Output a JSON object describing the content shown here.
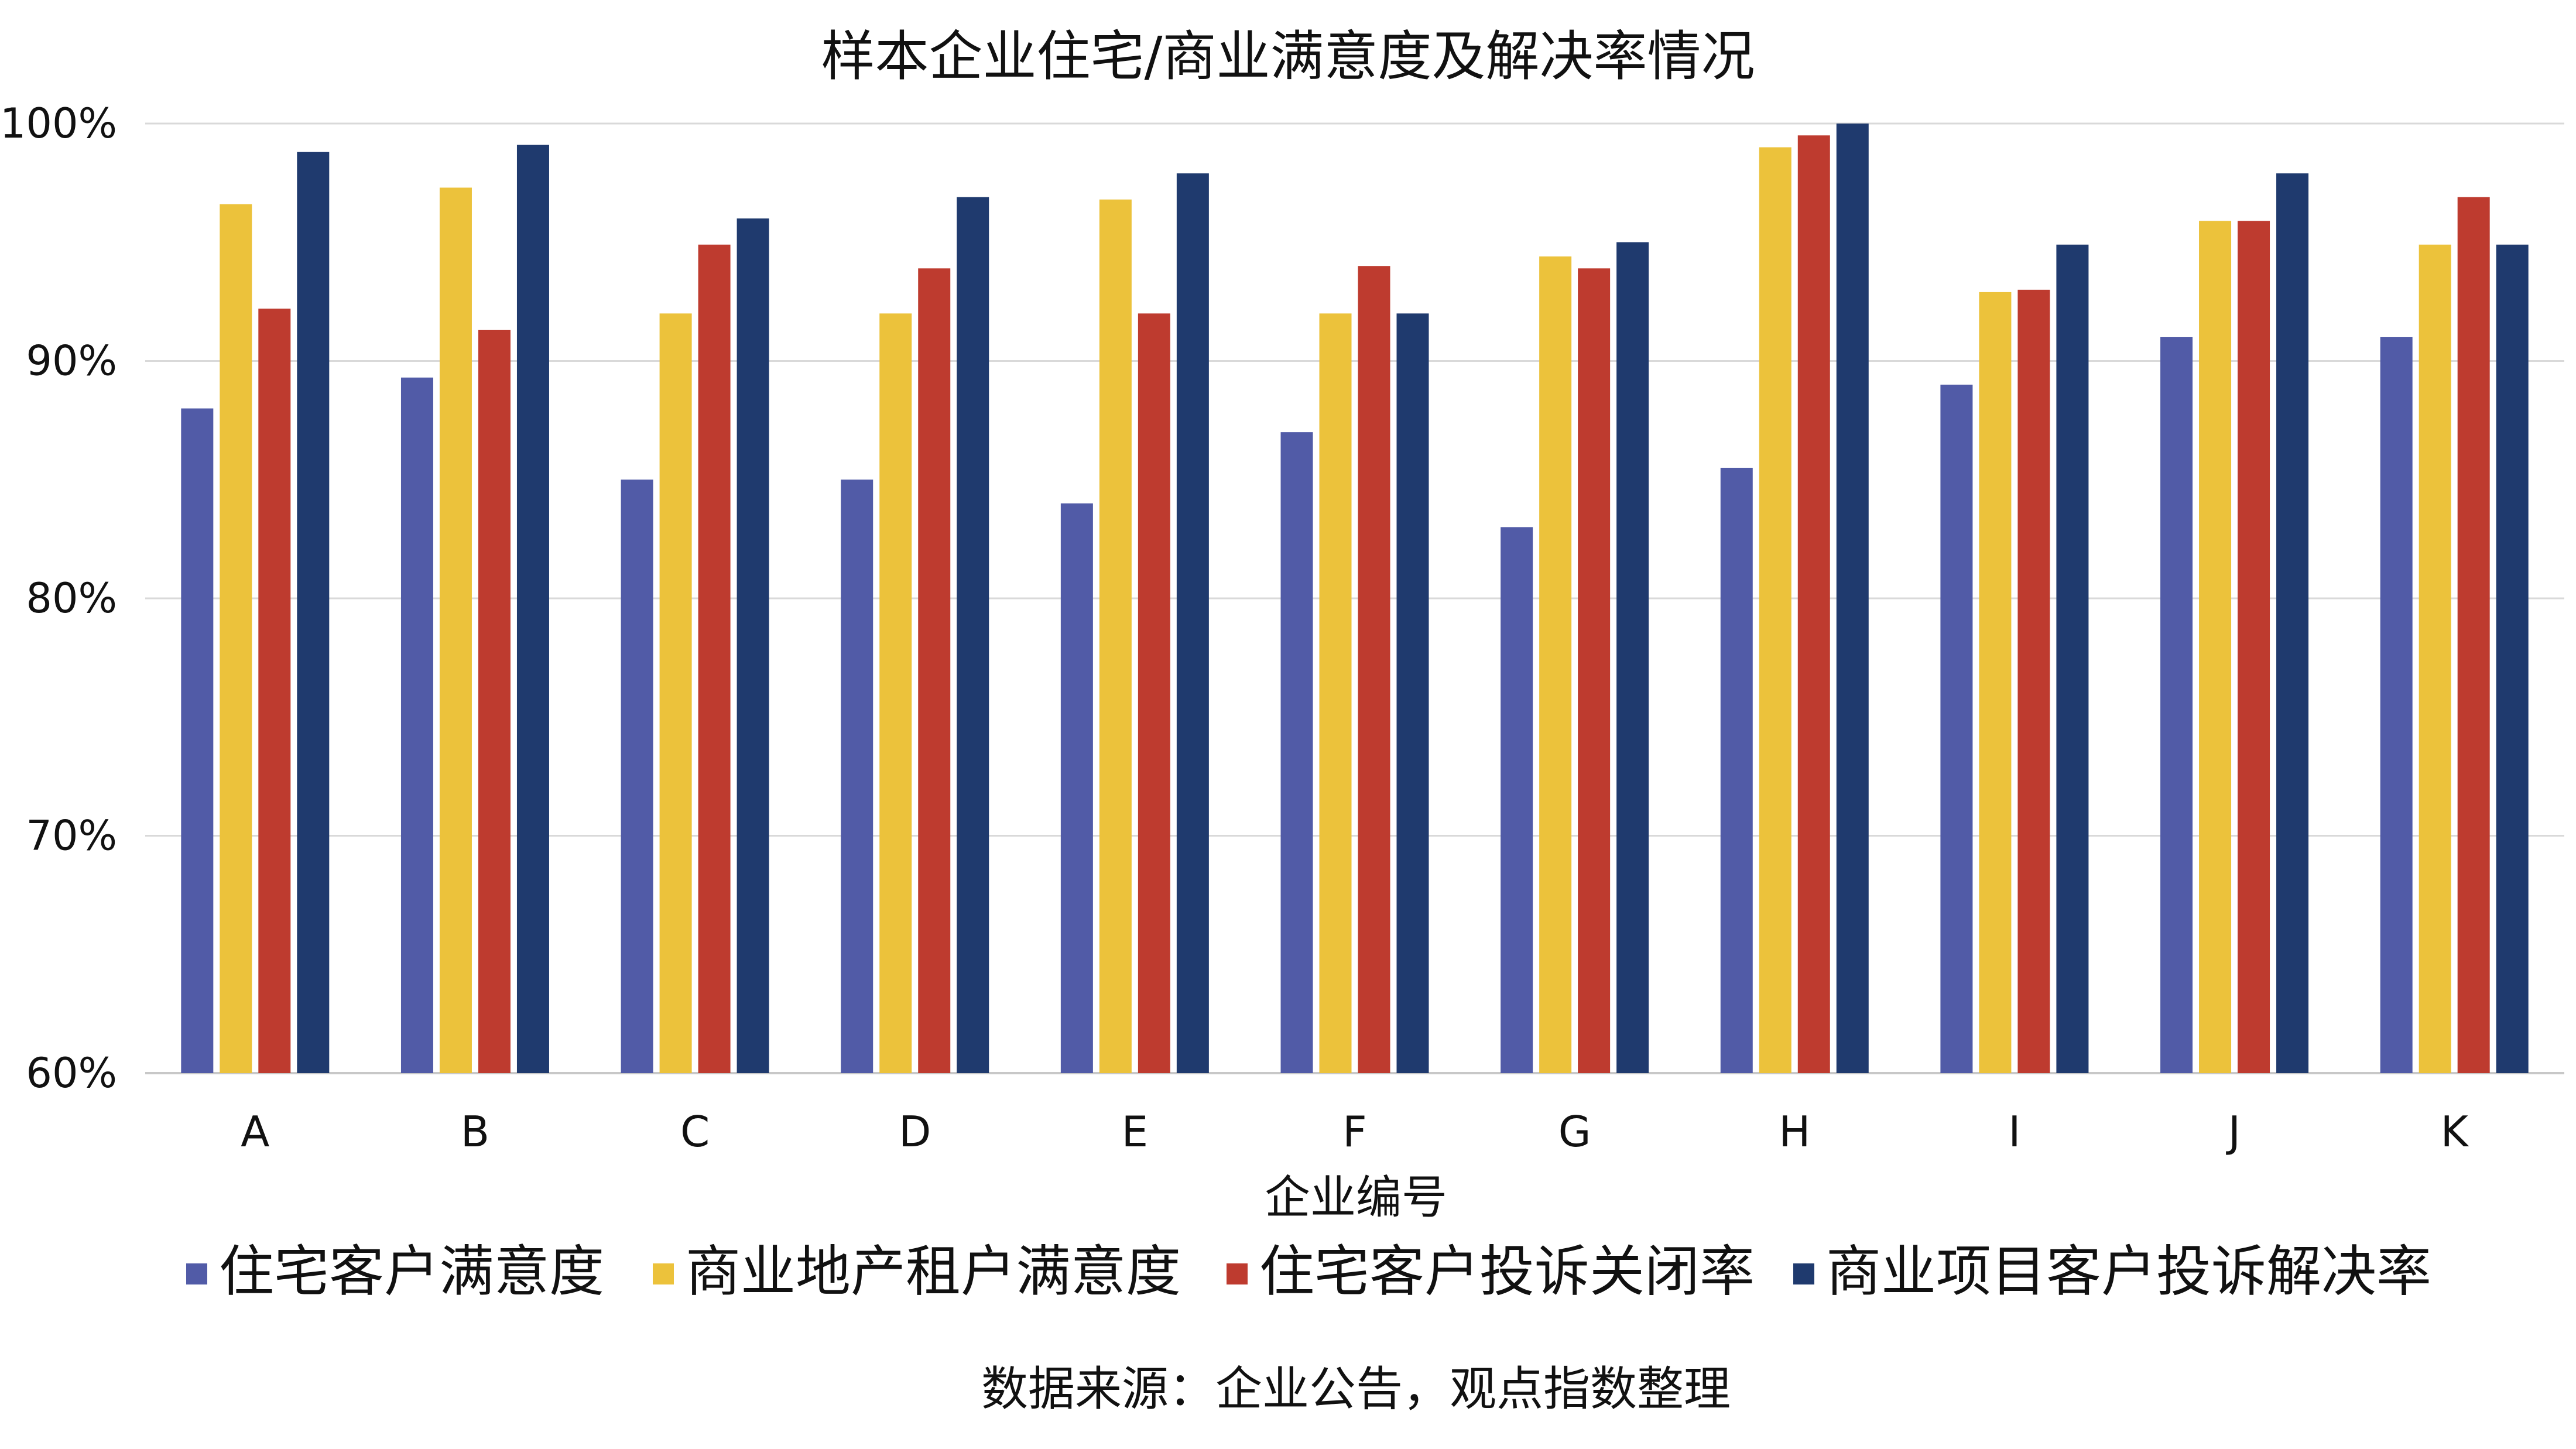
{
  "chart_data": {
    "type": "bar",
    "title": "样本企业住宅/商业满意度及解决率情况",
    "xlabel": "企业编号",
    "ylabel": "",
    "source": "数据来源：企业公告，观点指数整理",
    "categories": [
      "A",
      "B",
      "C",
      "D",
      "E",
      "F",
      "G",
      "H",
      "I",
      "J",
      "K"
    ],
    "ylim": [
      60,
      100
    ],
    "yticks": [
      60,
      70,
      80,
      90,
      100
    ],
    "ytick_labels": [
      "60%",
      "70%",
      "80%",
      "90%",
      "100%"
    ],
    "grid": true,
    "legend_position": "bottom",
    "series": [
      {
        "name": "住宅客户满意度",
        "color": "#515ba7",
        "values": [
          88,
          89.3,
          85,
          85,
          84,
          87,
          83,
          85.5,
          89,
          91,
          91
        ]
      },
      {
        "name": "商业地产租户满意度",
        "color": "#ecc23b",
        "values": [
          96.6,
          97.3,
          92,
          92,
          96.8,
          92,
          94.4,
          99,
          92.9,
          95.9,
          94.9
        ]
      },
      {
        "name": "住宅客户投诉关闭率",
        "color": "#be3b2f",
        "values": [
          92.2,
          91.3,
          94.9,
          93.9,
          92,
          94,
          93.9,
          99.5,
          93,
          95.9,
          96.9
        ]
      },
      {
        "name": "商业项目客户投诉解决率",
        "color": "#1f3a6e",
        "values": [
          98.8,
          99.1,
          96,
          96.9,
          97.9,
          92,
          95,
          100,
          94.9,
          97.9,
          94.9
        ]
      }
    ]
  }
}
